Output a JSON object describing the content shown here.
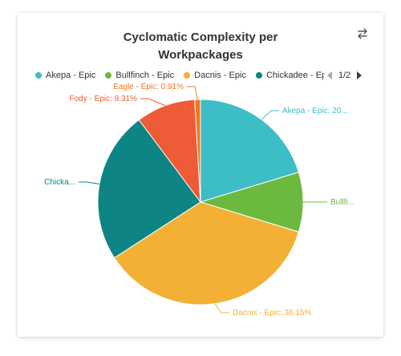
{
  "header": {
    "title_line1": "Cyclomatic Complexity per",
    "title_line2": "Workpackages"
  },
  "icons": {
    "swap": "swap-arrows-icon",
    "prev": "triangle-left-icon",
    "next": "triangle-right-icon"
  },
  "legend": {
    "items": [
      {
        "label": "Akepa - Epic",
        "color": "#3dbdc6"
      },
      {
        "label": "Bullfinch - Epic",
        "color": "#6cb93f"
      },
      {
        "label": "Dacnis - Epic",
        "color": "#f2b134"
      },
      {
        "label": "Chickadee - Ep",
        "color": "#0c8584"
      }
    ],
    "page": "1/2"
  },
  "chart_data": {
    "type": "pie",
    "slices": [
      {
        "name": "Akepa - Epic",
        "value": 20.3,
        "color": "#3dbdc6",
        "label": "Akepa - Epic: 20..."
      },
      {
        "name": "Bullfinch - Epic",
        "value": 9.4,
        "color": "#6cb93f",
        "label": "Bullfi..."
      },
      {
        "name": "Dacnis - Epic",
        "value": 36.15,
        "color": "#f2b134",
        "label": "Dacnis - Epic: 36.15%"
      },
      {
        "name": "Chickadee - Epic",
        "value": 23.93,
        "color": "#0c8584",
        "label": "Chicka..."
      },
      {
        "name": "Fody - Epic",
        "value": 9.31,
        "color": "#ef5a37",
        "label": "Fody - Epic: 9.31%"
      },
      {
        "name": "Eagle - Epic",
        "value": 0.91,
        "color": "#f7761a",
        "label": "Eagle - Epic: 0.91%"
      }
    ]
  }
}
